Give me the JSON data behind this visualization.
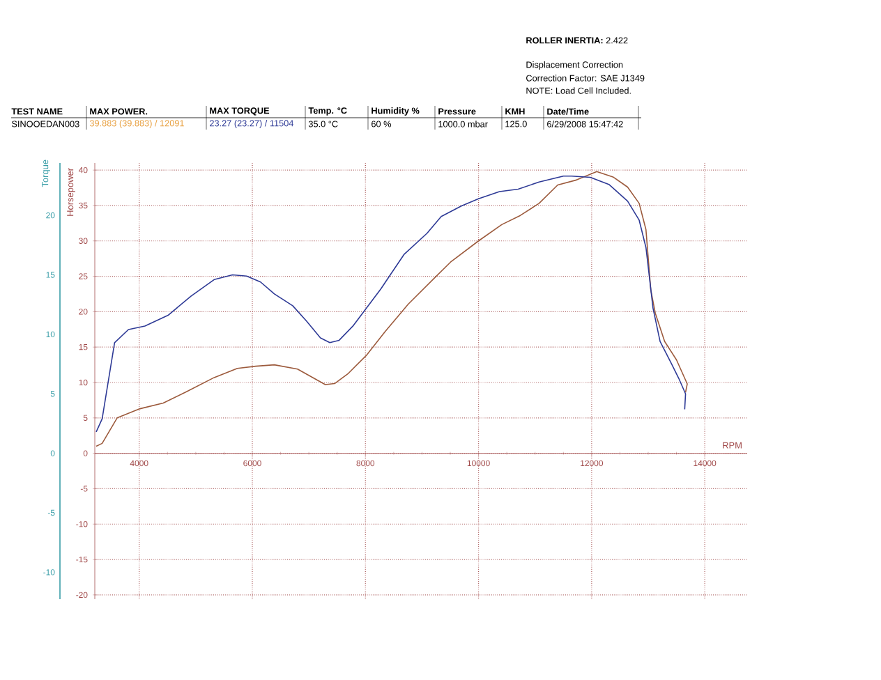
{
  "chart_data": {
    "type": "line",
    "xlabel": "RPM",
    "ylabel": "Horsepower",
    "y2label": "Torque",
    "xlim": [
      3215,
      14750
    ],
    "xticks": [
      4000,
      6000,
      8000,
      10000,
      12000,
      14000
    ],
    "ylim": [
      -20.6,
      41
    ],
    "yticks": [
      -20,
      -15,
      -10,
      -5,
      0,
      5,
      10,
      15,
      20,
      25,
      30,
      35,
      40
    ],
    "y2lim": [
      -12.26,
      24.4
    ],
    "y2ticks": [
      -10,
      -5,
      0,
      5,
      10,
      15,
      20
    ],
    "grid": true,
    "marker": "none",
    "line_style": "solid",
    "series": [
      {
        "color": "#2e3a96",
        "axis": "y2",
        "x": [
          3240,
          3345,
          3565,
          3810,
          4100,
          4510,
          4915,
          5325,
          5650,
          5900,
          6145,
          6390,
          6715,
          6960,
          7205,
          7370,
          7535,
          7780,
          7985,
          8270,
          8680,
          9090,
          9340,
          9700,
          10000,
          10370,
          10700,
          11070,
          11500,
          11645,
          11975,
          12305,
          12635,
          12840,
          12960,
          13085,
          13210,
          13415,
          13540,
          13660,
          13645
        ],
        "values": [
          1.8,
          2.9,
          9.3,
          10.4,
          10.7,
          11.6,
          13.2,
          14.6,
          15.0,
          14.9,
          14.4,
          13.4,
          12.4,
          11.1,
          9.7,
          9.3,
          9.5,
          10.7,
          12.0,
          13.8,
          16.7,
          18.5,
          19.9,
          20.8,
          21.4,
          22.0,
          22.2,
          22.8,
          23.3,
          23.3,
          23.2,
          22.6,
          21.2,
          19.6,
          17.3,
          12.2,
          9.4,
          7.5,
          6.3,
          5.0,
          3.7
        ]
      },
      {
        "color": "#9c5a3c",
        "x": [
          3240,
          3345,
          3610,
          4015,
          4425,
          4835,
          5325,
          5735,
          6060,
          6390,
          6800,
          7045,
          7290,
          7455,
          7700,
          8025,
          8350,
          8760,
          9250,
          9505,
          10000,
          10410,
          10740,
          11070,
          11400,
          11730,
          12090,
          12385,
          12635,
          12840,
          12960,
          13045,
          13125,
          13290,
          13500,
          13690,
          13660
        ],
        "values": [
          1.0,
          1.4,
          5.0,
          6.3,
          7.1,
          8.7,
          10.7,
          12.0,
          12.3,
          12.5,
          11.9,
          10.8,
          9.7,
          9.85,
          11.3,
          13.9,
          17.2,
          21.1,
          25.0,
          27.0,
          30.0,
          32.3,
          33.6,
          35.3,
          37.9,
          38.6,
          39.8,
          39.0,
          37.6,
          35.3,
          31.6,
          23.1,
          19.8,
          15.8,
          13.2,
          9.8,
          8.6
        ]
      }
    ],
    "annotations": [
      "**ROLLER INERTIA:**  2.422",
      "Displacement Correction",
      "Correction Factor:  SAE J1349",
      "NOTE: Load Cell Included.",
      "TEST NAME",
      "MAX POWER.",
      "MAX TORQUE",
      "Temp. °C",
      "Humidity %",
      "Pressure",
      "KMH",
      "Date/Time",
      "SINOOEDAN003",
      "39.883 (39.883) / 12091",
      "23.27 (23.27) / 11504",
      "35.0 °C",
      "60 %",
      "1000.0 mbar",
      "125.0",
      "6/29/2008 15:47:42"
    ]
  }
}
